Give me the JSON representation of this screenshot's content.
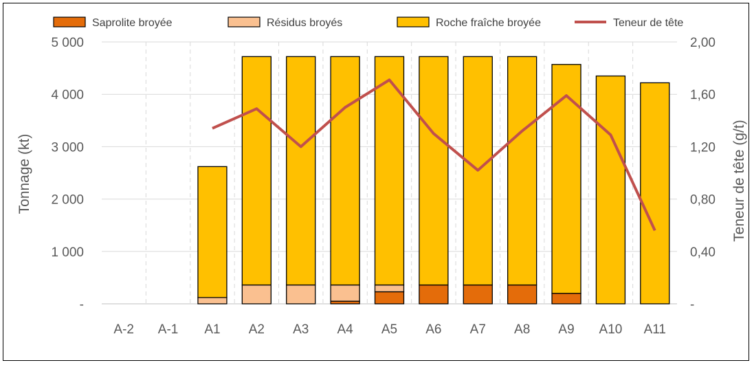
{
  "chart_data": {
    "type": "bar",
    "subtype": "stacked-bar-with-line",
    "categories": [
      "A-2",
      "A-1",
      "A1",
      "A2",
      "A3",
      "A4",
      "A5",
      "A6",
      "A7",
      "A8",
      "A9",
      "A10",
      "A11"
    ],
    "series": [
      {
        "name": "Saprolite broyée",
        "kind": "bar",
        "axis": "left",
        "color": "#E46C0A",
        "values": [
          0,
          0,
          0,
          0,
          0,
          50,
          230,
          360,
          360,
          360,
          200,
          0,
          0
        ]
      },
      {
        "name": "Résidus broyés",
        "kind": "bar",
        "axis": "left",
        "color": "#FAC090",
        "values": [
          0,
          0,
          120,
          360,
          360,
          310,
          130,
          0,
          0,
          0,
          0,
          0,
          0
        ]
      },
      {
        "name": "Roche fraîche broyée",
        "kind": "bar",
        "axis": "left",
        "color": "#FFC000",
        "values": [
          0,
          0,
          2500,
          4360,
          4360,
          4360,
          4360,
          4360,
          4360,
          4360,
          4370,
          4350,
          4220
        ]
      },
      {
        "name": "Teneur de tête",
        "kind": "line",
        "axis": "right",
        "color": "#C0504D",
        "values": [
          null,
          null,
          1.34,
          1.49,
          1.2,
          1.5,
          1.71,
          1.3,
          1.02,
          1.32,
          1.59,
          1.29,
          0.56
        ]
      }
    ],
    "ylabel": "Tonnage (kt)",
    "y2label": "Teneur de tête (g/t)",
    "ylim": [
      0,
      5000
    ],
    "y2lim": [
      0,
      2.0
    ],
    "y_ticks": [
      "-",
      "1 000",
      "2 000",
      "3 000",
      "4 000",
      "5 000"
    ],
    "y2_ticks": [
      "-",
      "0,40",
      "0,80",
      "1,20",
      "1,60",
      "2,00"
    ],
    "grid": true,
    "legend": "top"
  }
}
